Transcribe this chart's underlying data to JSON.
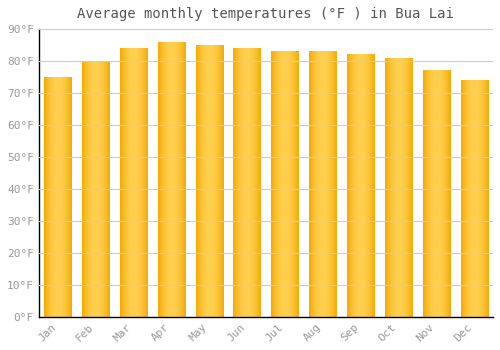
{
  "title": "Average monthly temperatures (°F ) in Bua Lai",
  "months": [
    "Jan",
    "Feb",
    "Mar",
    "Apr",
    "May",
    "Jun",
    "Jul",
    "Aug",
    "Sep",
    "Oct",
    "Nov",
    "Dec"
  ],
  "values": [
    75,
    80,
    84,
    86,
    85,
    84,
    83,
    83,
    82,
    81,
    77,
    74
  ],
  "bar_color_center": "#FFD050",
  "bar_color_edge": "#F5A800",
  "background_color": "#FFFFFF",
  "fig_background_color": "#FFFFFF",
  "grid_color": "#CCCCCC",
  "text_color": "#999999",
  "title_color": "#555555",
  "spine_color": "#000000",
  "ylim": [
    0,
    90
  ],
  "yticks": [
    0,
    10,
    20,
    30,
    40,
    50,
    60,
    70,
    80,
    90
  ],
  "ylabel_suffix": "°F",
  "title_fontsize": 10,
  "tick_fontsize": 8,
  "bar_width": 0.72
}
